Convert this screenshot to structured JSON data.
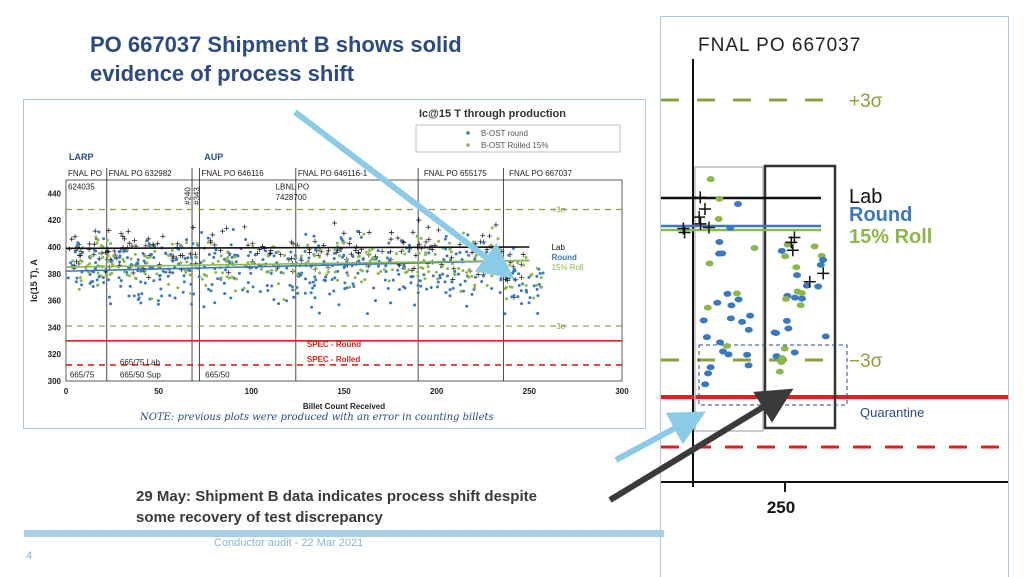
{
  "slide": {
    "title_line1": "PO 667037 Shipment B shows solid",
    "title_line2": "evidence of process shift",
    "note": "NOTE: previous plots were produced with an error in counting billets",
    "bottom_line1": "29 May: Shipment B data indicates process shift despite",
    "bottom_line2": "some recovery of test discrepancy",
    "footer": "Conductor audit - 22 Mar 2021",
    "page": "4",
    "quarantine_label": "Quarantine"
  },
  "colors": {
    "title": "#2c4a86",
    "round": "#3a78c2",
    "rolled": "#8ab84a",
    "lab": "#111111",
    "spec_round": "#e02020",
    "spec_rolled": "#e02020",
    "sigma": "#8aa040",
    "arrow_light": "#8ccbe6",
    "arrow_dark": "#3a3a3a"
  },
  "chart_data": [
    {
      "type": "scatter",
      "title": "Ic@15 T through production",
      "xlabel": "Billet Count Received",
      "ylabel": "Ic(15 T), A",
      "xlim": [
        0,
        300
      ],
      "ylim": [
        300,
        450
      ],
      "xticks": [
        0,
        50,
        100,
        150,
        200,
        250,
        300
      ],
      "yticks": [
        300,
        320,
        340,
        360,
        380,
        400,
        420,
        440
      ],
      "grid": false,
      "legend_position": "top-right",
      "legend": [
        "B-OST round",
        "B-OST Rolled 15%"
      ],
      "program_labels": [
        {
          "text": "LARP",
          "x": 0
        },
        {
          "text": "AUP",
          "x": 73
        }
      ],
      "po_labels": [
        {
          "text": "FNAL PO",
          "x": 0
        },
        {
          "text": "FNAL PO 632982",
          "x": 22
        },
        {
          "text": "FNAL PO 646116",
          "x": 72
        },
        {
          "text": "FNAL PO 646116-1",
          "x": 124
        },
        {
          "text": "FNAL PO 655175",
          "x": 192
        },
        {
          "text": "FNAL PO 667037",
          "x": 238
        }
      ],
      "sub_labels": [
        {
          "text": "624035",
          "x": 0,
          "y": 440
        },
        {
          "text": "LBNL PO",
          "x": 112,
          "y": 440
        },
        {
          "text": "7428700",
          "x": 112,
          "y": 432
        }
      ],
      "vertical_dividers": [
        22,
        68,
        72,
        124,
        190,
        236
      ],
      "rotated_labels": [
        {
          "text": "#240",
          "x": 66
        },
        {
          "text": "#343",
          "x": 71
        }
      ],
      "bottom_labels": [
        {
          "text": "665/75",
          "x": 1,
          "y": 305
        },
        {
          "text": "665/75 Lab",
          "x": 28,
          "y": 314
        },
        {
          "text": "665/50 Sup",
          "x": 28,
          "y": 305
        },
        {
          "text": "665/50",
          "x": 74,
          "y": 305
        }
      ],
      "series": [
        {
          "name": "Lab",
          "marker": "plus",
          "mean": 398,
          "spread": 11,
          "x_range": [
            1,
            248
          ],
          "count": 210
        },
        {
          "name": "Round",
          "marker": "dot",
          "mean": 384,
          "spread": 16,
          "x_range": [
            1,
            258
          ],
          "count": 420
        },
        {
          "name": "15% Roll",
          "marker": "dot",
          "mean": 387,
          "spread": 12,
          "x_range": [
            1,
            258
          ],
          "count": 260
        }
      ],
      "trend_lines": [
        {
          "name": "Lab",
          "y": [
            399,
            400
          ]
        },
        {
          "name": "Round",
          "y": [
            382,
            390
          ]
        },
        {
          "name": "15% Roll",
          "y": [
            385,
            390
          ]
        }
      ],
      "reference_lines": [
        {
          "name": "+3σ",
          "y": 428,
          "style": "dashed"
        },
        {
          "name": "−3σ",
          "y": 341,
          "style": "dashed"
        },
        {
          "name": "SPEC - Round",
          "y": 330,
          "style": "solid"
        },
        {
          "name": "SPEC - Rolled",
          "y": 312,
          "style": "dashed"
        }
      ],
      "right_labels": [
        "Lab",
        "Round",
        "15% Roll"
      ]
    },
    {
      "type": "scatter",
      "title": "FNAL PO 667037",
      "xticks": [
        250
      ],
      "legend": [
        "Lab",
        "Round",
        "15% Roll"
      ],
      "reference_lines": [
        {
          "name": "+3σ",
          "style": "dashed"
        },
        {
          "name": "−3σ",
          "style": "dashed"
        }
      ]
    }
  ]
}
